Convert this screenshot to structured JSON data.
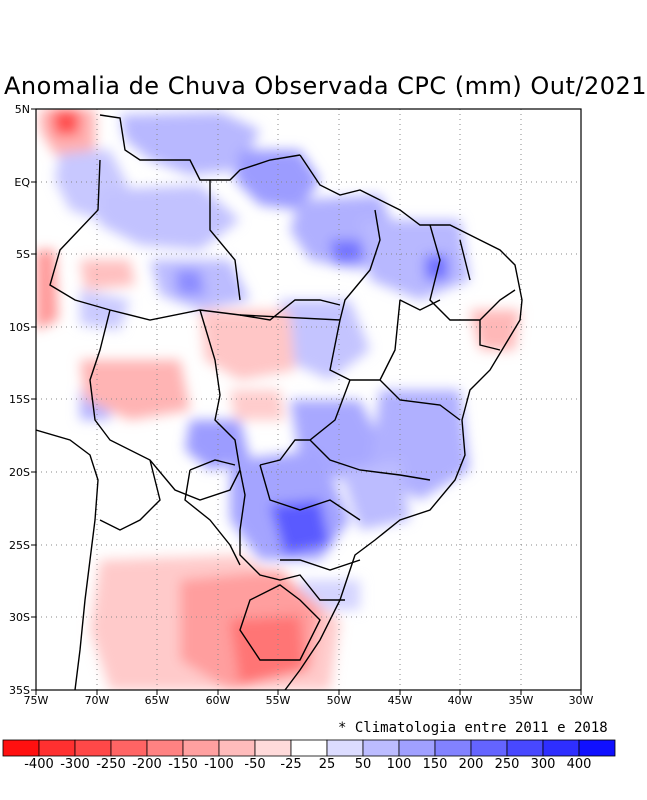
{
  "title": "Anomalia de Chuva Observada CPC (mm) Out/2021",
  "note": "* Climatologia entre 2011 e 2018",
  "lat_labels": [
    "5N",
    "EQ",
    "5S",
    "10S",
    "15S",
    "20S",
    "25S",
    "30S",
    "35S"
  ],
  "lon_labels": [
    "75W",
    "70W",
    "65W",
    "60W",
    "55W",
    "50W",
    "45W",
    "40W",
    "35W",
    "30W"
  ],
  "colorbar": {
    "labels": [
      "-400",
      "-300",
      "-250",
      "-200",
      "-150",
      "-100",
      "-50",
      "-25",
      "25",
      "50",
      "100",
      "150",
      "200",
      "250",
      "300",
      "400"
    ],
    "colors": [
      "#ff1010",
      "#ff3030",
      "#ff4848",
      "#ff6464",
      "#ff8282",
      "#ffa0a0",
      "#ffbcbc",
      "#ffdada",
      "#ffffff",
      "#dcdcff",
      "#bcbcff",
      "#a0a0ff",
      "#8282ff",
      "#6464ff",
      "#4848ff",
      "#2e2eff",
      "#1010ff"
    ]
  }
}
